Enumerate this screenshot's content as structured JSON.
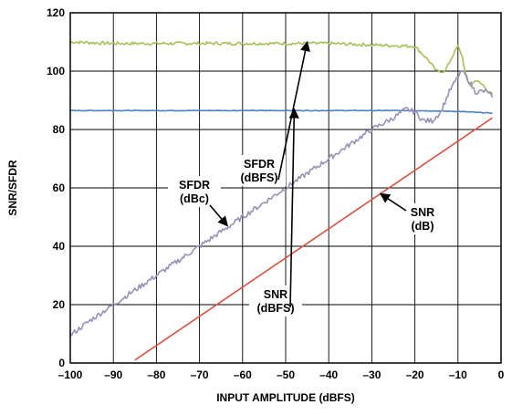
{
  "chart_data": {
    "type": "line",
    "xlabel": "INPUT AMPLITUDE (dBFS)",
    "ylabel": "SNR/SFDR",
    "xlim": [
      -100,
      0
    ],
    "ylim": [
      0,
      120
    ],
    "x_ticks": [
      -100,
      -90,
      -80,
      -70,
      -60,
      -50,
      -40,
      -30,
      -20,
      -10,
      0
    ],
    "x_tick_labels": [
      "–100",
      "–90",
      "–80",
      "–70",
      "–60",
      "–50",
      "–40",
      "–30",
      "–20",
      "–10",
      "0"
    ],
    "y_ticks": [
      0,
      20,
      40,
      60,
      80,
      100,
      120
    ],
    "y_tick_labels": [
      "0",
      "20",
      "40",
      "60",
      "80",
      "100",
      "120"
    ],
    "grid": true,
    "series": [
      {
        "color": "#a6c05a",
        "x": [
          -100,
          -90,
          -80,
          -70,
          -60,
          -50,
          -40,
          -30,
          -20,
          -17,
          -15,
          -13,
          -11,
          -10,
          -9,
          -8,
          -7,
          -6,
          -5,
          -4,
          -3,
          -2
        ],
        "y": [
          110,
          109.5,
          109.5,
          109.5,
          109.5,
          109.5,
          109.5,
          109,
          108.5,
          104,
          100,
          100,
          106,
          108.5,
          105,
          97,
          95,
          97,
          96,
          95,
          93,
          92
        ]
      },
      {
        "color": "#4a7fc8",
        "x": [
          -100,
          -80,
          -60,
          -40,
          -20,
          -10,
          -5,
          -2
        ],
        "y": [
          86.5,
          86.5,
          86.5,
          86.5,
          86.5,
          86.2,
          85.8,
          85.6
        ]
      },
      {
        "color": "#9a8fb8",
        "x": [
          -100,
          -95,
          -90,
          -85,
          -80,
          -75,
          -70,
          -65,
          -60,
          -55,
          -50,
          -45,
          -40,
          -35,
          -30,
          -25,
          -22,
          -20,
          -18,
          -16,
          -14,
          -12,
          -10,
          -9,
          -8,
          -6,
          -4,
          -3,
          -2
        ],
        "y": [
          9.5,
          15,
          20,
          25,
          30,
          35,
          40,
          45,
          50,
          55,
          60,
          65,
          70,
          75,
          80,
          84,
          87,
          86,
          83,
          83,
          86,
          93,
          98,
          100,
          98,
          93,
          93,
          93,
          91
        ]
      },
      {
        "color": "#d9503f",
        "x": [
          -85,
          -2
        ],
        "y": [
          1,
          84
        ]
      }
    ],
    "annotations": [
      {
        "lines": [
          "SFDR",
          "(dBFS)"
        ],
        "target": [
          -45,
          110
        ]
      },
      {
        "lines": [
          "SNR",
          "(dBFS)"
        ],
        "target": [
          -48,
          87
        ]
      },
      {
        "lines": [
          "SFDR",
          "(dBc)"
        ],
        "target": [
          -63.5,
          47
        ]
      },
      {
        "lines": [
          "SNR",
          "(dB)"
        ],
        "target": [
          -28,
          58
        ]
      }
    ]
  }
}
